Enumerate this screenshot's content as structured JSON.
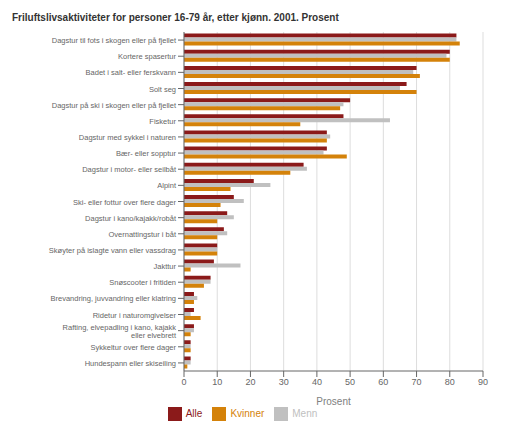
{
  "chart_data": {
    "type": "bar",
    "orientation": "horizontal",
    "title": "Friluftslivsaktiviteter for personer 16-79 år, etter kjønn. 2001. Prosent",
    "categories": [
      "Dagstur til fots i skogen eller på fjellet",
      "Kortere spasertur",
      "Badet i salt- eller ferskvann",
      "Solt seg",
      "Dagstur på ski i skogen eller på fjellet",
      "Fisketur",
      "Dagstur med sykkel i naturen",
      "Bær- eller sopptur",
      "Dagstur i motor- eller seilbåt",
      "Alpint",
      "Ski- eller fottur over flere dager",
      "Dagstur i kano/kajakk/robåt",
      "Overnattingstur i båt",
      "Skøyter på islagte vann eller vassdrag",
      "Jakttur",
      "Snøscooter i fritiden",
      "Brevandring, juvvandring eller klatring",
      "Ridetur i naturomgivelser",
      "Rafting, elvepadling i kano, kajakk\neller elvebrett",
      "Sykkeltur over flere dager",
      "Hundespann eller skiseiling"
    ],
    "series": [
      {
        "name": "Alle",
        "color": "#8B1A1A",
        "values": [
          82,
          80,
          70,
          67,
          50,
          48,
          43,
          43,
          36,
          21,
          15,
          13,
          12,
          10,
          9,
          8,
          3,
          3,
          3,
          2,
          2
        ]
      },
      {
        "name": "Menn",
        "color": "#C0C0C0",
        "values": [
          82,
          79,
          69,
          65,
          48,
          62,
          44,
          42,
          37,
          26,
          18,
          15,
          13,
          10,
          17,
          8,
          4,
          2,
          3,
          2,
          2
        ]
      },
      {
        "name": "Kvinner",
        "color": "#D4820A",
        "values": [
          83,
          80,
          71,
          70,
          47,
          35,
          43,
          49,
          32,
          14,
          11,
          10,
          10,
          10,
          2,
          6,
          3,
          5,
          2,
          2,
          1
        ]
      }
    ],
    "xlim": [
      0,
      90
    ],
    "xticks": [
      0,
      10,
      20,
      30,
      40,
      50,
      60,
      70,
      80,
      90
    ],
    "xlabel": "Prosent",
    "grid": true,
    "legend": "bottom"
  }
}
